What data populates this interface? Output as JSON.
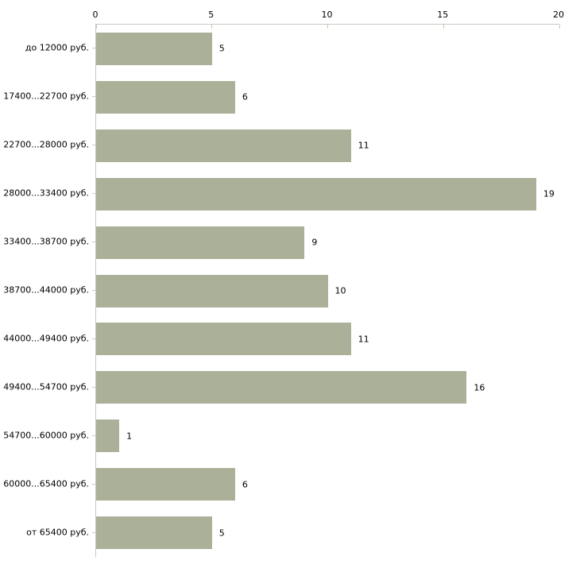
{
  "chart_data": {
    "type": "bar",
    "orientation": "horizontal",
    "title": "",
    "xlabel": "",
    "ylabel": "",
    "categories": [
      "до 12000 руб.",
      "17400...22700 руб.",
      "22700...28000 руб.",
      "28000...33400 руб.",
      "33400...38700 руб.",
      "38700...44000 руб.",
      "44000...49400 руб.",
      "49400...54700 руб.",
      "54700...60000 руб.",
      "60000...65400 руб.",
      "от 65400 руб."
    ],
    "values": [
      5,
      6,
      11,
      19,
      9,
      10,
      11,
      16,
      1,
      6,
      5
    ],
    "xlim": [
      0,
      20
    ],
    "x_ticks": [
      0,
      5,
      10,
      15,
      20
    ],
    "x_axis_position": "top",
    "grid": false,
    "legend": false,
    "value_labels_shown": true,
    "colors": {
      "bar_fill": "#abb198",
      "axis_line": "#c8c8c6",
      "axis_tick": "#c5cba8",
      "label_text": "#000000",
      "background": "#ffffff"
    }
  }
}
